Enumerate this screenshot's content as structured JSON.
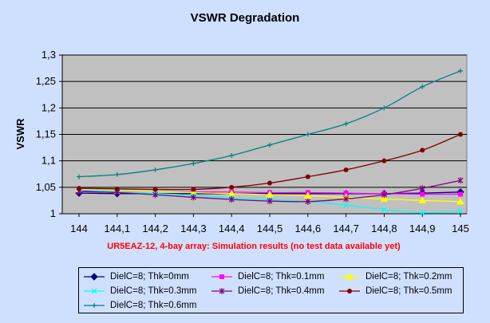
{
  "chart_data": {
    "type": "line",
    "title": "VSWR Degradation",
    "ylabel": "VSWR",
    "xlabel": "UR5EAZ-12, 4-bay array: Simulation results (no test data available yet)",
    "xlabel_color": "#ff0000",
    "x": [
      144,
      144.1,
      144.2,
      144.3,
      144.4,
      144.5,
      144.6,
      144.7,
      144.8,
      144.9,
      145
    ],
    "x_tick_labels": [
      "144",
      "144,1",
      "144,2",
      "144,3",
      "144,4",
      "144,5",
      "144,6",
      "144,7",
      "144,8",
      "144,9",
      "145"
    ],
    "ylim": [
      1,
      1.3
    ],
    "y_ticks": [
      1,
      1.05,
      1.1,
      1.15,
      1.2,
      1.25,
      1.3
    ],
    "y_tick_labels": [
      "1",
      "1,05",
      "1,1",
      "1,15",
      "1,2",
      "1,25",
      "1,3"
    ],
    "grid": true,
    "plot_background": "#c0c0c0",
    "legend_position": "bottom",
    "series": [
      {
        "name": "DielC=8; Thk=0mm",
        "color": "#000080",
        "marker": "diamond",
        "values": [
          1.039,
          1.038,
          1.038,
          1.038,
          1.038,
          1.038,
          1.038,
          1.038,
          1.038,
          1.039,
          1.041
        ]
      },
      {
        "name": "DielC=8; Thk=0.1mm",
        "color": "#ff00ff",
        "marker": "square",
        "values": [
          1.043,
          1.043,
          1.042,
          1.041,
          1.041,
          1.04,
          1.04,
          1.039,
          1.038,
          1.037,
          1.037
        ]
      },
      {
        "name": "DielC=8; Thk=0.2mm",
        "color": "#ffff00",
        "marker": "triangle",
        "values": [
          1.046,
          1.044,
          1.042,
          1.04,
          1.038,
          1.036,
          1.034,
          1.031,
          1.028,
          1.025,
          1.023
        ]
      },
      {
        "name": "DielC=8; Thk=0.3mm",
        "color": "#00ffff",
        "marker": "x",
        "values": [
          1.045,
          1.042,
          1.038,
          1.035,
          1.03,
          1.027,
          1.023,
          1.016,
          1.008,
          1.002,
          1.005
        ]
      },
      {
        "name": "DielC=8; Thk=0.4mm",
        "color": "#800080",
        "marker": "star",
        "values": [
          1.042,
          1.04,
          1.036,
          1.031,
          1.027,
          1.024,
          1.023,
          1.028,
          1.036,
          1.048,
          1.063
        ]
      },
      {
        "name": "DielC=8; Thk=0.5mm",
        "color": "#800000",
        "marker": "circle",
        "values": [
          1.048,
          1.047,
          1.046,
          1.046,
          1.05,
          1.058,
          1.07,
          1.083,
          1.1,
          1.12,
          1.15
        ]
      },
      {
        "name": "DielC=8; Thk=0.6mm",
        "color": "#008080",
        "marker": "plus",
        "values": [
          1.07,
          1.074,
          1.083,
          1.095,
          1.11,
          1.13,
          1.15,
          1.17,
          1.2,
          1.24,
          1.27
        ]
      }
    ]
  }
}
